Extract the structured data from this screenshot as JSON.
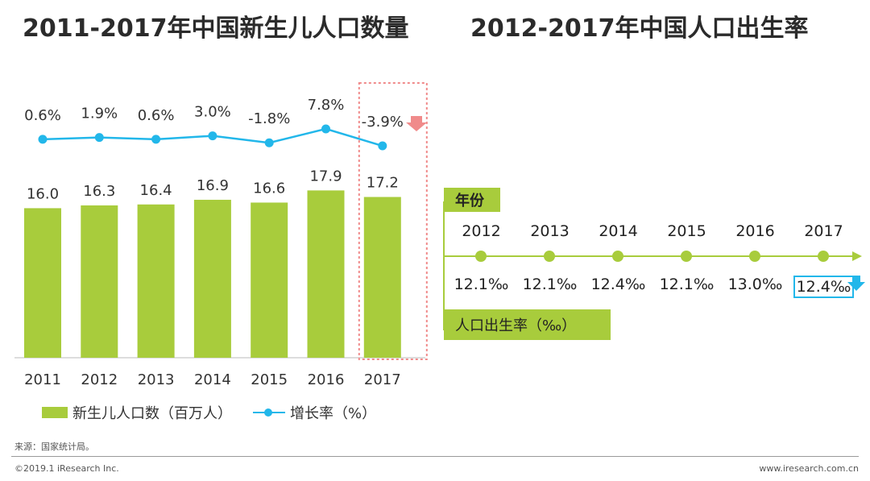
{
  "titles": {
    "left": "2011-2017年中国新生儿人口数量",
    "right": "2012-2017年中国人口出生率"
  },
  "chart_data": [
    {
      "type": "bar",
      "categories": [
        "2011",
        "2012",
        "2013",
        "2014",
        "2015",
        "2016",
        "2017"
      ],
      "series": [
        {
          "name": "新生儿人口数（百万人）",
          "type": "bar",
          "values": [
            16.0,
            16.3,
            16.4,
            16.9,
            16.6,
            17.9,
            17.2
          ],
          "labels": [
            "16.0",
            "16.3",
            "16.4",
            "16.9",
            "16.6",
            "17.9",
            "17.2"
          ]
        },
        {
          "name": "增长率（%）",
          "type": "line",
          "values": [
            0.6,
            1.9,
            0.6,
            3.0,
            -1.8,
            7.8,
            -3.9
          ],
          "labels": [
            "0.6%",
            "1.9%",
            "0.6%",
            "3.0%",
            "-1.8%",
            "7.8%",
            "-3.9%"
          ]
        }
      ],
      "legend": "bottom-left",
      "grid": false,
      "highlight_category": "2017",
      "colors": {
        "bar": "#a8cc3c",
        "line": "#22b7ea",
        "highlight_box": "#f08b8b",
        "down_arrow": "#f08b8b"
      }
    },
    {
      "type": "timeline",
      "x_label": "年份",
      "y_label": "人口出生率（‰）",
      "categories": [
        "2012",
        "2013",
        "2014",
        "2015",
        "2016",
        "2017"
      ],
      "values": [
        12.1,
        12.1,
        12.4,
        12.1,
        13.0,
        12.4
      ],
      "value_labels": [
        "12.1‰",
        "12.1‰",
        "12.4‰",
        "12.1‰",
        "13.0‰",
        "12.4‰"
      ],
      "highlight_category": "2017",
      "colors": {
        "axis": "#a8cc3c",
        "dot": "#a8cc3c",
        "highlight_box": "#22b7ea",
        "down_arrow": "#22b7ea"
      }
    }
  ],
  "legend_items": {
    "bar": "新生儿人口数（百万人）",
    "line": "增长率（%）"
  },
  "footer": {
    "source": "来源：国家统计局。",
    "copyright": "©2019.1 iResearch Inc.",
    "website": "www.iresearch.com.cn"
  }
}
